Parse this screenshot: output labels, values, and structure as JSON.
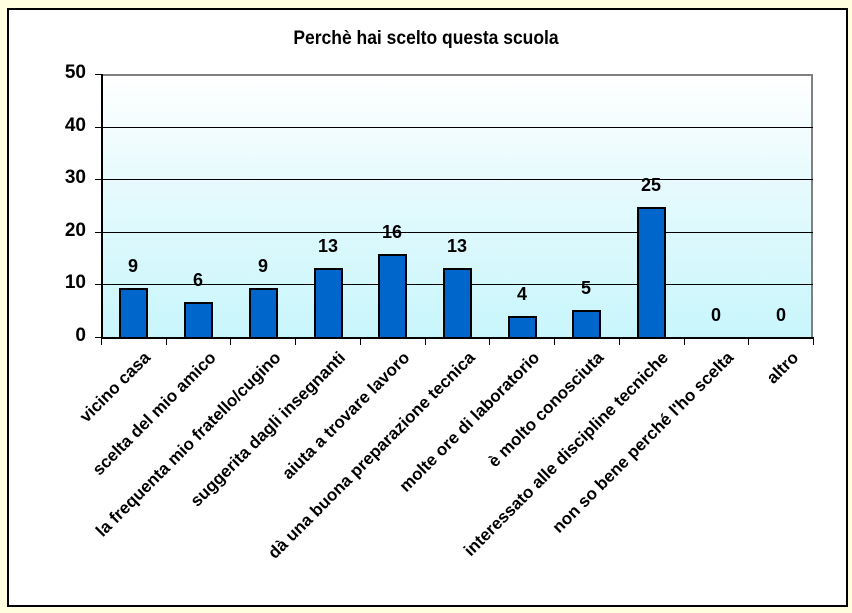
{
  "chart_data": {
    "type": "bar",
    "title": "Perchè hai scelto questa scuola",
    "xlabel": "",
    "ylabel": "",
    "ylim": [
      0,
      50
    ],
    "yticks": [
      0,
      10,
      20,
      30,
      40,
      50
    ],
    "grid": true,
    "legend": null,
    "categories": [
      "vicino casa",
      "scelta del mio amico",
      "la frequenta mio fratello/cugino",
      "suggerita dagli insegnanti",
      "aiuta a trovare lavoro",
      "dà una buona preparazione tecnica",
      "molte ore di laboratorio",
      "è molto conosciuta",
      "interessato alle discipline tecniche",
      "non so bene perché l'ho scelta",
      "altro"
    ],
    "values": [
      9,
      6,
      9,
      13,
      16,
      13,
      4,
      5,
      25,
      0,
      0
    ],
    "bar_heights_estimated": [
      9.3,
      6.6,
      9.3,
      13.1,
      15.8,
      13.1,
      4.0,
      5.1,
      24.8,
      0,
      0
    ],
    "bar_color": "#0066CC",
    "plot_background": "gradient white to light cyan (#C8F6FC)",
    "page_background": "#FFFFE0"
  }
}
